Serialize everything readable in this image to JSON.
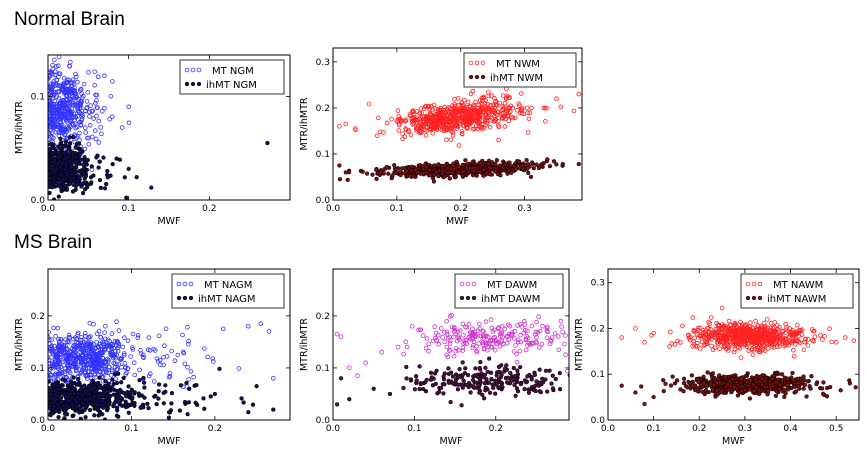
{
  "sections": {
    "normal": "Normal Brain",
    "ms": "MS Brain"
  },
  "chart_data": [
    {
      "id": "ngm",
      "type": "scatter",
      "title": "",
      "xlabel": "MWF",
      "ylabel": "MTR/ihMTR",
      "xlim": [
        0.0,
        0.3
      ],
      "ylim": [
        0.0,
        0.14
      ],
      "xticks": [
        0.0,
        0.1,
        0.2
      ],
      "yticks": [
        0.0,
        0.1
      ],
      "legend": "top-right",
      "series": [
        {
          "name": "MT NGM",
          "color": "#3333ff",
          "marker": "open-circle",
          "clusters": [
            {
              "n": 420,
              "x_mean": 0.018,
              "x_sd": 0.016,
              "y_mean": 0.088,
              "y_sd": 0.018
            },
            {
              "n": 40,
              "x_mean": 0.05,
              "x_sd": 0.02,
              "y_mean": 0.075,
              "y_sd": 0.02
            }
          ],
          "points": [
            [
              0.061,
              0.145
            ],
            [
              0.1,
              0.09
            ],
            [
              0.078,
              0.1
            ],
            [
              0.275,
              0.108
            ],
            [
              0.092,
              0.07
            ],
            [
              0.07,
              0.12
            ]
          ]
        },
        {
          "name": "ihMT NGM",
          "color": "#101050",
          "marker": "filled-circle",
          "clusters": [
            {
              "n": 420,
              "x_mean": 0.018,
              "x_sd": 0.016,
              "y_mean": 0.03,
              "y_sd": 0.012
            },
            {
              "n": 40,
              "x_mean": 0.05,
              "x_sd": 0.02,
              "y_mean": 0.022,
              "y_sd": 0.01
            }
          ],
          "points": [
            [
              0.1,
              0.03
            ],
            [
              0.128,
              0.012
            ],
            [
              0.085,
              0.04
            ],
            [
              0.272,
              0.055
            ],
            [
              0.11,
              0.022
            ]
          ]
        }
      ]
    },
    {
      "id": "nwm",
      "type": "scatter",
      "title": "",
      "xlabel": "MWF",
      "ylabel": "MTR/ihMTR",
      "xlim": [
        0.0,
        0.39
      ],
      "ylim": [
        0.0,
        0.33
      ],
      "xticks": [
        0.0,
        0.1,
        0.2,
        0.3
      ],
      "yticks": [
        0.0,
        0.1,
        0.2,
        0.3
      ],
      "legend": "top-right",
      "series": [
        {
          "name": "MT NWM",
          "color": "#ff2222",
          "marker": "open-circle",
          "clusters": [
            {
              "n": 600,
              "x_mean": 0.2,
              "x_sd": 0.05,
              "y_mean": 0.18,
              "y_sd": 0.017,
              "slope": 0.16
            }
          ],
          "points": [
            [
              0.02,
              0.165
            ],
            [
              0.035,
              0.155
            ],
            [
              0.01,
              0.16
            ],
            [
              0.35,
              0.22
            ],
            [
              0.385,
              0.23
            ],
            [
              0.33,
              0.2
            ]
          ]
        },
        {
          "name": "ihMT NWM",
          "color": "#7a1010",
          "marker": "filled-circle",
          "clusters": [
            {
              "n": 550,
              "x_mean": 0.2,
              "x_sd": 0.06,
              "y_mean": 0.066,
              "y_sd": 0.007,
              "slope": 0.06
            }
          ],
          "points": [
            [
              0.01,
              0.075
            ],
            [
              0.36,
              0.078
            ],
            [
              0.385,
              0.078
            ],
            [
              0.33,
              0.08
            ],
            [
              0.02,
              0.06
            ]
          ]
        }
      ]
    },
    {
      "id": "nagm",
      "type": "scatter",
      "title": "",
      "xlabel": "MWF",
      "ylabel": "MTR/ihMTR",
      "xlim": [
        0.0,
        0.29
      ],
      "ylim": [
        0.0,
        0.29
      ],
      "xticks": [
        0.0,
        0.1,
        0.2
      ],
      "yticks": [
        0.0,
        0.1,
        0.2
      ],
      "legend": "top-right",
      "series": [
        {
          "name": "MT NAGM",
          "color": "#3333ff",
          "marker": "open-circle",
          "clusters": [
            {
              "n": 520,
              "x_mean": 0.04,
              "x_sd": 0.028,
              "y_mean": 0.12,
              "y_sd": 0.022
            },
            {
              "n": 70,
              "x_mean": 0.12,
              "x_sd": 0.045,
              "y_mean": 0.12,
              "y_sd": 0.03
            }
          ],
          "points": [
            [
              0.24,
              0.18
            ],
            [
              0.255,
              0.185
            ],
            [
              0.21,
              0.175
            ],
            [
              0.27,
              0.08
            ],
            [
              0.265,
              0.17
            ]
          ]
        },
        {
          "name": "ihMT NAGM",
          "color": "#101050",
          "marker": "filled-circle",
          "clusters": [
            {
              "n": 520,
              "x_mean": 0.04,
              "x_sd": 0.028,
              "y_mean": 0.042,
              "y_sd": 0.016
            },
            {
              "n": 70,
              "x_mean": 0.13,
              "x_sd": 0.05,
              "y_mean": 0.045,
              "y_sd": 0.02
            }
          ],
          "points": [
            [
              0.24,
              0.015
            ],
            [
              0.27,
              0.02
            ],
            [
              0.25,
              0.065
            ],
            [
              0.2,
              0.05
            ]
          ]
        }
      ]
    },
    {
      "id": "dawm",
      "type": "scatter",
      "title": "",
      "xlabel": "MWF",
      "ylabel": "MTR/ihMTR",
      "xlim": [
        0.0,
        0.29
      ],
      "ylim": [
        0.0,
        0.29
      ],
      "xticks": [
        0.0,
        0.1,
        0.2
      ],
      "yticks": [
        0.0,
        0.1,
        0.2
      ],
      "legend": "top-right",
      "series": [
        {
          "name": "MT DAWM",
          "color": "#cc33cc",
          "marker": "open-circle",
          "clusters": [
            {
              "n": 220,
              "x_mean": 0.19,
              "x_sd": 0.045,
              "y_mean": 0.16,
              "y_sd": 0.015
            }
          ],
          "points": [
            [
              0.005,
              0.165
            ],
            [
              0.01,
              0.16
            ],
            [
              0.02,
              0.1
            ],
            [
              0.04,
              0.11
            ],
            [
              0.06,
              0.13
            ],
            [
              0.08,
              0.14
            ],
            [
              0.03,
              0.085
            ],
            [
              0.28,
              0.19
            ]
          ]
        },
        {
          "name": "ihMT DAWM",
          "color": "#4a1040",
          "marker": "filled-circle",
          "clusters": [
            {
              "n": 220,
              "x_mean": 0.19,
              "x_sd": 0.045,
              "y_mean": 0.075,
              "y_sd": 0.015
            }
          ],
          "points": [
            [
              0.005,
              0.03
            ],
            [
              0.01,
              0.08
            ],
            [
              0.02,
              0.04
            ],
            [
              0.05,
              0.06
            ],
            [
              0.07,
              0.05
            ],
            [
              0.27,
              0.085
            ]
          ]
        }
      ]
    },
    {
      "id": "nawm",
      "type": "scatter",
      "title": "",
      "xlabel": "MWF",
      "ylabel": "MTR/ihMTR",
      "xlim": [
        0.0,
        0.55
      ],
      "ylim": [
        0.0,
        0.33
      ],
      "xticks": [
        0.0,
        0.1,
        0.2,
        0.3,
        0.4,
        0.5
      ],
      "yticks": [
        0.0,
        0.1,
        0.2,
        0.3
      ],
      "legend": "top-right",
      "series": [
        {
          "name": "MT NAWM",
          "color": "#ff2222",
          "marker": "open-circle",
          "clusters": [
            {
              "n": 620,
              "x_mean": 0.31,
              "x_sd": 0.065,
              "y_mean": 0.183,
              "y_sd": 0.014
            }
          ],
          "points": [
            [
              0.03,
              0.18
            ],
            [
              0.06,
              0.2
            ],
            [
              0.08,
              0.17
            ],
            [
              0.1,
              0.19
            ],
            [
              0.5,
              0.17
            ],
            [
              0.52,
              0.18
            ],
            [
              0.25,
              0.245
            ]
          ]
        },
        {
          "name": "ihMT NAWM",
          "color": "#7a1010",
          "marker": "filled-circle",
          "clusters": [
            {
              "n": 620,
              "x_mean": 0.3,
              "x_sd": 0.07,
              "y_mean": 0.078,
              "y_sd": 0.01
            }
          ],
          "points": [
            [
              0.03,
              0.075
            ],
            [
              0.06,
              0.06
            ],
            [
              0.08,
              0.035
            ],
            [
              0.1,
              0.05
            ],
            [
              0.48,
              0.07
            ],
            [
              0.53,
              0.08
            ],
            [
              0.51,
              0.065
            ]
          ]
        }
      ]
    }
  ]
}
